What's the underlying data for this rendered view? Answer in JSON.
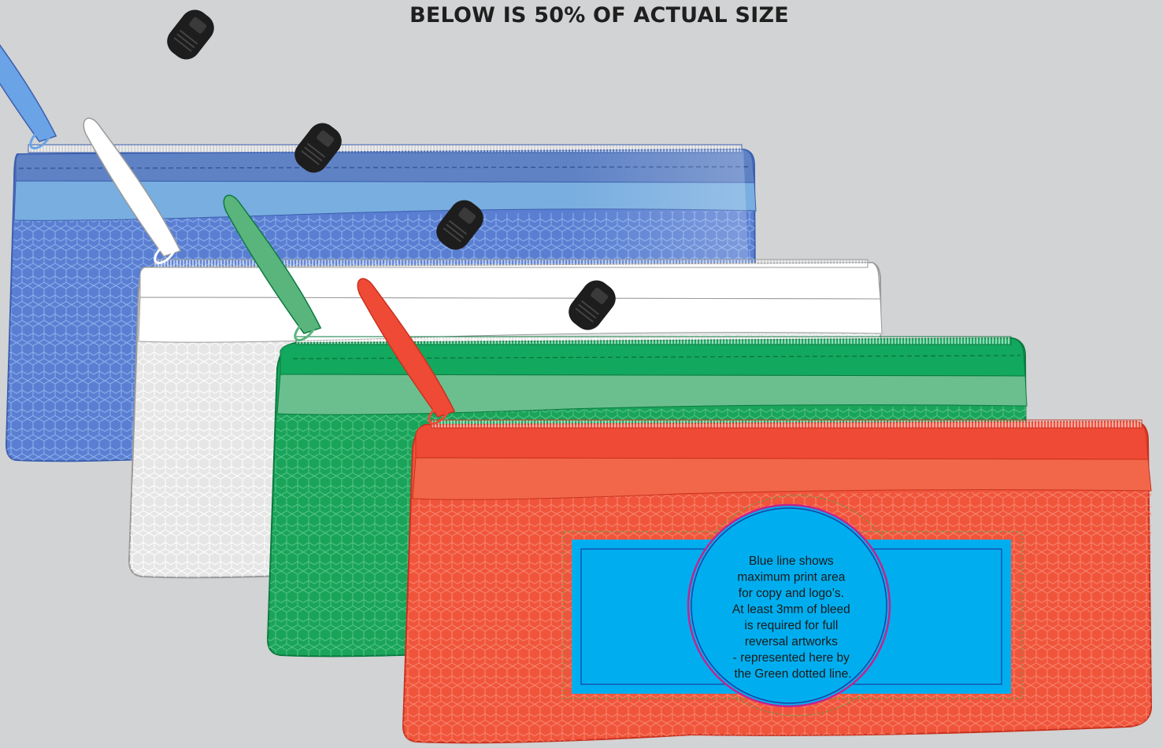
{
  "heading": "BELOW IS 50% OF ACTUAL SIZE",
  "pouches": [
    {
      "name": "blue",
      "colors": {
        "top": "#5f82c5",
        "band": "#79aee0",
        "body": "#5a7fd2",
        "mesh": "#8fb1ec",
        "edge": "#3c5fae",
        "puller": "#6aa3e6"
      }
    },
    {
      "name": "white",
      "colors": {
        "top": "#ffffff",
        "band": "#ffffff",
        "body": "#e6e6e6",
        "mesh": "#f6f6f6",
        "edge": "#9a9a9a",
        "puller": "#ffffff"
      }
    },
    {
      "name": "green",
      "colors": {
        "top": "#12a85e",
        "band": "#6bbf8e",
        "body": "#19a45a",
        "mesh": "#57c487",
        "edge": "#0b7a40",
        "puller": "#5ab57c"
      }
    },
    {
      "name": "red",
      "colors": {
        "top": "#ef4a36",
        "band": "#f2674a",
        "body": "#f0553c",
        "mesh": "#f7866e",
        "edge": "#c8321f",
        "puller": "#ef4a36"
      }
    }
  ],
  "print_area": {
    "fill": "#00aeef",
    "outline": "#1b3fa0",
    "circle_outline": "#c0258f",
    "bleed_line": "#3fae49",
    "note_lines": [
      "Blue line shows",
      "maximum print area",
      "for copy and logo’s.",
      "At least 3mm of bleed",
      "is required for full",
      "reversal artworks",
      "- represented here by",
      "the Green dotted line."
    ]
  }
}
